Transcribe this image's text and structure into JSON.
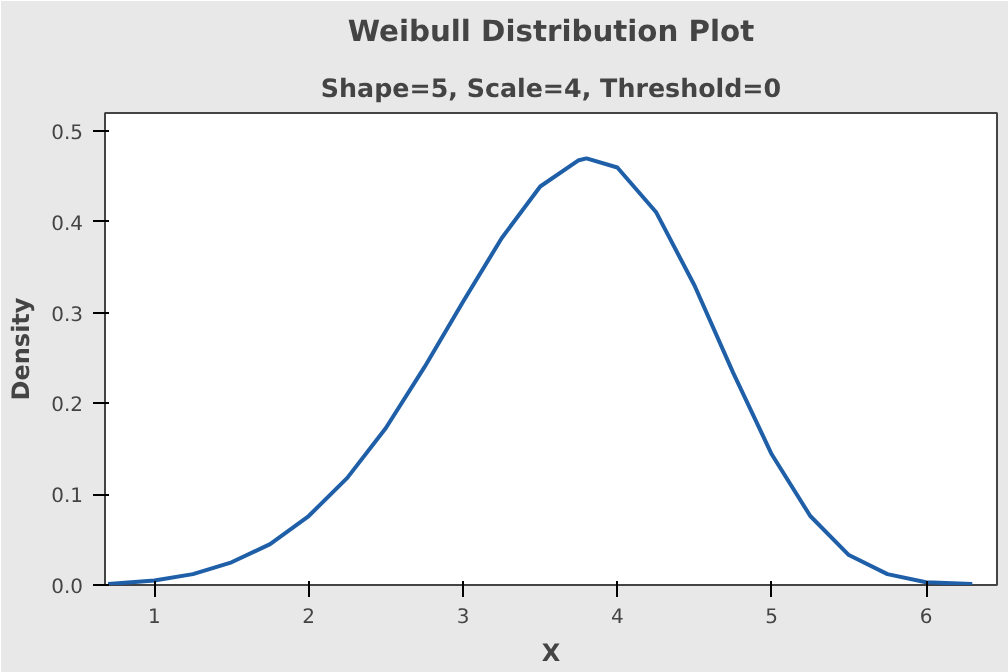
{
  "chart_data": {
    "type": "line",
    "title": "Weibull Distribution Plot",
    "subtitle": "Shape=5, Scale=4, Threshold=0",
    "xlabel": "X",
    "ylabel": "Density",
    "x": [
      0.7,
      1.0,
      1.25,
      1.5,
      1.75,
      2.0,
      2.25,
      2.5,
      2.75,
      3.0,
      3.25,
      3.5,
      3.75,
      3.8,
      4.0,
      4.25,
      4.5,
      4.75,
      5.0,
      5.25,
      5.5,
      5.75,
      6.0,
      6.3
    ],
    "series": [
      {
        "color": "#1f5fa8",
        "values": [
          0.001,
          0.005,
          0.012,
          0.025,
          0.045,
          0.076,
          0.118,
          0.173,
          0.24,
          0.312,
          0.382,
          0.439,
          0.468,
          0.47,
          0.46,
          0.411,
          0.33,
          0.234,
          0.144,
          0.076,
          0.033,
          0.012,
          0.003,
          0.001
        ]
      }
    ],
    "xlim": [
      0.68,
      6.46
    ],
    "ylim": [
      0,
      0.52
    ],
    "xticks": [
      1,
      2,
      3,
      4,
      5,
      6
    ],
    "yticks": [
      {
        "value": 0,
        "label": "0.0"
      },
      {
        "value": 0.1,
        "label": "0.1"
      },
      {
        "value": 0.2,
        "label": "0.2"
      },
      {
        "value": 0.3,
        "label": "0.3"
      },
      {
        "value": 0.4,
        "label": "0.4"
      },
      {
        "value": 0.5,
        "label": "0.5"
      }
    ],
    "grid": false,
    "marker": "none",
    "line_style": "solid"
  }
}
